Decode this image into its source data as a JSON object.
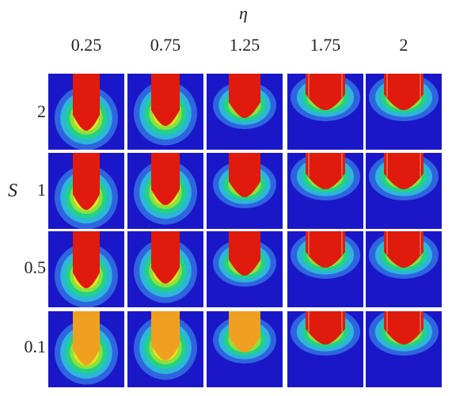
{
  "axes": {
    "x_symbol": "η",
    "y_symbol": "S"
  },
  "columns": [
    "0.25",
    "0.75",
    "1.25",
    "1.75",
    "2"
  ],
  "rows": [
    "2",
    "1",
    "0.5",
    "0.1"
  ],
  "colormap": [
    "#1a17c8",
    "#2f64e0",
    "#2cb6d8",
    "#22d286",
    "#8fe03a",
    "#e6e61e",
    "#f39c12",
    "#e01a0c"
  ]
}
